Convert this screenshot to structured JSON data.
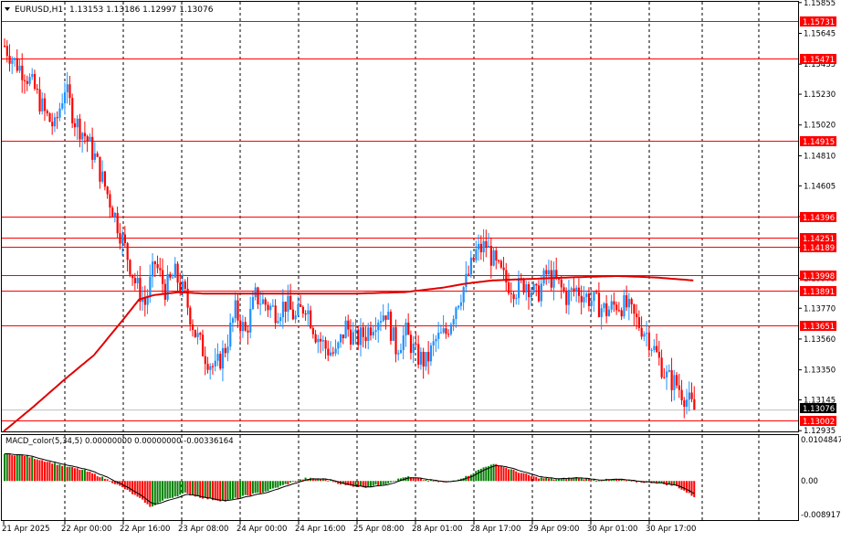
{
  "colors": {
    "background": "#ffffff",
    "bull_candle": "#1e90ff",
    "bear_candle": "#ff0000",
    "hline": "#ff0000",
    "ma_line": "#e00000",
    "grid": "#000000",
    "macd_up": "#008000",
    "macd_down": "#ff0000",
    "signal": "#000000",
    "price_tag_bg": "#ff0000",
    "current_tag_bg": "#000000"
  },
  "header": {
    "symbol_label": "EURUSD,H1",
    "ohlc": "1.13153 1.13186 1.12997 1.13076"
  },
  "indicator": {
    "label": "MACD_color(5,34,5) 0.00000000 0.00000000 -0.00336164",
    "axis_labels": [
      "0.0104847",
      "0.00",
      "-0.0089170"
    ]
  },
  "chart_data": [
    {
      "type": "candlestick",
      "title": "EURUSD,H1",
      "ylim": [
        1.1293,
        1.1586
      ],
      "y_ticks": [
        "1.15855",
        "1.15645",
        "1.15435",
        "1.15230",
        "1.15020",
        "1.14810",
        "1.14605",
        "1.14395",
        "1.14185",
        "1.13975",
        "1.13770",
        "1.13560",
        "1.13350",
        "1.13145",
        "1.12935"
      ],
      "x_ticks": [
        "21 Apr 2025",
        "22 Apr 00:00",
        "22 Apr 16:00",
        "23 Apr 08:00",
        "24 Apr 00:00",
        "24 Apr 16:00",
        "25 Apr 08:00",
        "28 Apr 01:00",
        "28 Apr 17:00",
        "29 Apr 09:00",
        "30 Apr 01:00",
        "30 Apr 17:00"
      ],
      "horizontal_levels": [
        "1.15731",
        "1.15471",
        "1.14915",
        "1.14396",
        "1.14251",
        "1.14189",
        "1.13998",
        "1.13891",
        "1.13651",
        "1.13002"
      ],
      "current_price": "1.13076",
      "close_path": [
        [
          0,
          1.1556
        ],
        [
          4,
          1.1545
        ],
        [
          8,
          1.1538
        ],
        [
          12,
          1.1526
        ],
        [
          16,
          1.151
        ],
        [
          20,
          1.15
        ],
        [
          24,
          1.1528
        ],
        [
          28,
          1.1505
        ],
        [
          32,
          1.1495
        ],
        [
          36,
          1.148
        ],
        [
          40,
          1.146
        ],
        [
          44,
          1.144
        ],
        [
          48,
          1.1418
        ],
        [
          52,
          1.1395
        ],
        [
          56,
          1.138
        ],
        [
          60,
          1.1408
        ],
        [
          64,
          1.139
        ],
        [
          68,
          1.14
        ],
        [
          72,
          1.1385
        ],
        [
          76,
          1.136
        ],
        [
          80,
          1.1345
        ],
        [
          84,
          1.1335
        ],
        [
          88,
          1.135
        ],
        [
          92,
          1.1375
        ],
        [
          96,
          1.136
        ],
        [
          100,
          1.1385
        ],
        [
          104,
          1.138
        ],
        [
          108,
          1.1375
        ],
        [
          112,
          1.138
        ],
        [
          116,
          1.137
        ],
        [
          120,
          1.138
        ],
        [
          124,
          1.136
        ],
        [
          128,
          1.135
        ],
        [
          132,
          1.1345
        ],
        [
          136,
          1.1365
        ],
        [
          140,
          1.1355
        ],
        [
          144,
          1.136
        ],
        [
          148,
          1.137
        ],
        [
          152,
          1.1375
        ],
        [
          156,
          1.135
        ],
        [
          160,
          1.136
        ],
        [
          164,
          1.1345
        ],
        [
          168,
          1.134
        ],
        [
          172,
          1.1355
        ],
        [
          176,
          1.136
        ],
        [
          180,
          1.138
        ],
        [
          184,
          1.1395
        ],
        [
          188,
          1.1415
        ],
        [
          192,
          1.142
        ],
        [
          196,
          1.1405
        ],
        [
          200,
          1.1395
        ],
        [
          204,
          1.139
        ],
        [
          208,
          1.1395
        ],
        [
          212,
          1.1385
        ],
        [
          216,
          1.14
        ],
        [
          220,
          1.1395
        ],
        [
          224,
          1.1385
        ],
        [
          228,
          1.139
        ],
        [
          232,
          1.1385
        ],
        [
          236,
          1.138
        ],
        [
          240,
          1.1375
        ],
        [
          244,
          1.138
        ],
        [
          248,
          1.1378
        ],
        [
          252,
          1.1368
        ],
        [
          256,
          1.136
        ],
        [
          260,
          1.1345
        ],
        [
          264,
          1.133
        ],
        [
          268,
          1.1325
        ],
        [
          272,
          1.1315
        ],
        [
          275,
          1.13076
        ]
      ],
      "ma_path": [
        [
          0,
          1.1293
        ],
        [
          12,
          1.131
        ],
        [
          24,
          1.1328
        ],
        [
          36,
          1.1345
        ],
        [
          48,
          1.137
        ],
        [
          54,
          1.1383
        ],
        [
          60,
          1.1386
        ],
        [
          70,
          1.1388
        ],
        [
          80,
          1.1387
        ],
        [
          100,
          1.1387
        ],
        [
          120,
          1.1387
        ],
        [
          140,
          1.1387
        ],
        [
          160,
          1.1388
        ],
        [
          175,
          1.1391
        ],
        [
          185,
          1.1394
        ],
        [
          195,
          1.1396
        ],
        [
          210,
          1.1397
        ],
        [
          225,
          1.1398
        ],
        [
          245,
          1.1399
        ],
        [
          260,
          1.1398
        ],
        [
          275,
          1.1396
        ]
      ]
    },
    {
      "type": "histogram",
      "title": "MACD_color(5,34,5)",
      "ylim": [
        -0.008917,
        0.0104847
      ],
      "series_shape": [
        [
          0,
          0.0062
        ],
        [
          8,
          0.0058
        ],
        [
          16,
          0.0046
        ],
        [
          24,
          0.0034
        ],
        [
          32,
          0.0024
        ],
        [
          40,
          0.0006
        ],
        [
          48,
          -0.0018
        ],
        [
          56,
          -0.0048
        ],
        [
          58,
          -0.006
        ],
        [
          64,
          -0.0042
        ],
        [
          72,
          -0.0028
        ],
        [
          80,
          -0.004
        ],
        [
          88,
          -0.0046
        ],
        [
          96,
          -0.0034
        ],
        [
          104,
          -0.0024
        ],
        [
          112,
          -0.0008
        ],
        [
          120,
          0.0006
        ],
        [
          128,
          0.0004
        ],
        [
          136,
          -0.001
        ],
        [
          144,
          -0.0014
        ],
        [
          152,
          -0.0006
        ],
        [
          160,
          0.001
        ],
        [
          168,
          0.0002
        ],
        [
          176,
          -0.0004
        ],
        [
          184,
          0.001
        ],
        [
          192,
          0.0034
        ],
        [
          196,
          0.0038
        ],
        [
          204,
          0.0022
        ],
        [
          212,
          0.0008
        ],
        [
          220,
          0.0004
        ],
        [
          228,
          0.0008
        ],
        [
          236,
          0.0002
        ],
        [
          244,
          0.0004
        ],
        [
          252,
          -0.0002
        ],
        [
          260,
          -0.0004
        ],
        [
          268,
          -0.0012
        ],
        [
          275,
          -0.0036
        ]
      ]
    }
  ]
}
